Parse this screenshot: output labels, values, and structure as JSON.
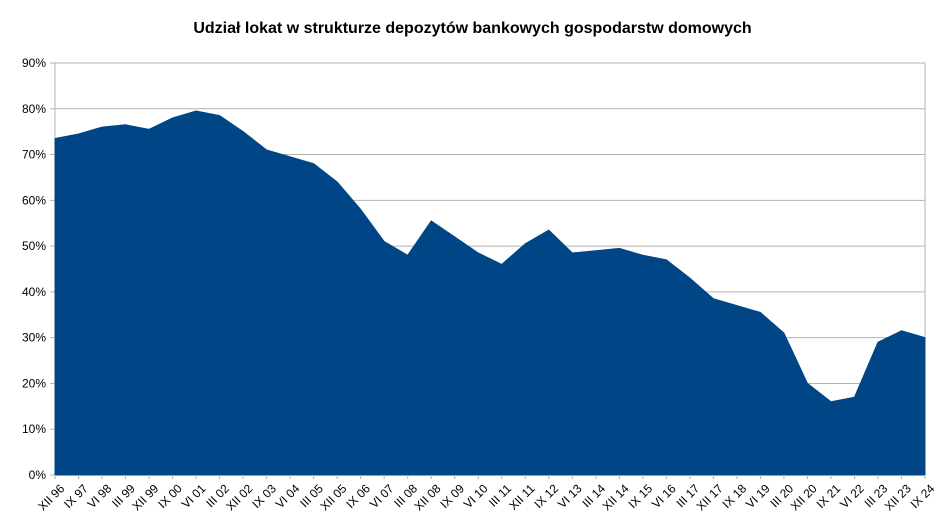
{
  "chart_data": {
    "type": "area",
    "title": "Udział lokat w strukturze depozytów bankowych gospodarstw domowych",
    "xlabel": "",
    "ylabel": "",
    "ylim": [
      0,
      90
    ],
    "y_ticks": [
      "0%",
      "10%",
      "20%",
      "30%",
      "40%",
      "50%",
      "60%",
      "70%",
      "80%",
      "90%"
    ],
    "x_ticks": [
      "XII 96",
      "IX 97",
      "VI 98",
      "III 99",
      "XII 99",
      "IX 00",
      "VI 01",
      "III 02",
      "XII 02",
      "IX 03",
      "VI 04",
      "III 05",
      "XII 05",
      "IX 06",
      "VI 07",
      "III 08",
      "XII 08",
      "IX 09",
      "VI 10",
      "III 11",
      "XII 11",
      "IX 12",
      "VI 13",
      "III 14",
      "XII 14",
      "IX 15",
      "VI 16",
      "III 17",
      "XII 17",
      "IX 18",
      "VI 19",
      "III 20",
      "XII 20",
      "IX 21",
      "VI 22",
      "III 23",
      "XII 23",
      "IX 24"
    ],
    "grid": true,
    "legend": "none",
    "color": "#004687",
    "series": [
      {
        "x": [
          "XII 96",
          "IX 97",
          "VI 98",
          "III 99",
          "XII 99",
          "IX 00",
          "VI 01",
          "III 02",
          "XII 02",
          "IX 03",
          "VI 04",
          "III 05",
          "XII 05",
          "IX 06",
          "VI 07",
          "III 08",
          "XII 08",
          "IX 09",
          "VI 10",
          "III 11",
          "XII 11",
          "IX 12",
          "VI 13",
          "III 14",
          "XII 14",
          "IX 15",
          "VI 16",
          "III 17",
          "XII 17",
          "IX 18",
          "VI 19",
          "III 20",
          "XII 20",
          "IX 21",
          "VI 22",
          "III 23",
          "XII 23",
          "IX 24"
        ],
        "values": [
          73.5,
          74.5,
          76.0,
          76.5,
          75.5,
          78.0,
          79.5,
          78.5,
          75.0,
          71.0,
          69.5,
          68.0,
          64.0,
          58.0,
          51.0,
          48.0,
          55.5,
          52.0,
          48.5,
          46.0,
          50.5,
          53.5,
          48.5,
          49.0,
          49.5,
          48.0,
          47.0,
          43.0,
          38.5,
          37.0,
          35.5,
          31.0,
          20.0,
          16.0,
          17.0,
          29.0,
          31.5,
          30.0
        ]
      }
    ]
  }
}
